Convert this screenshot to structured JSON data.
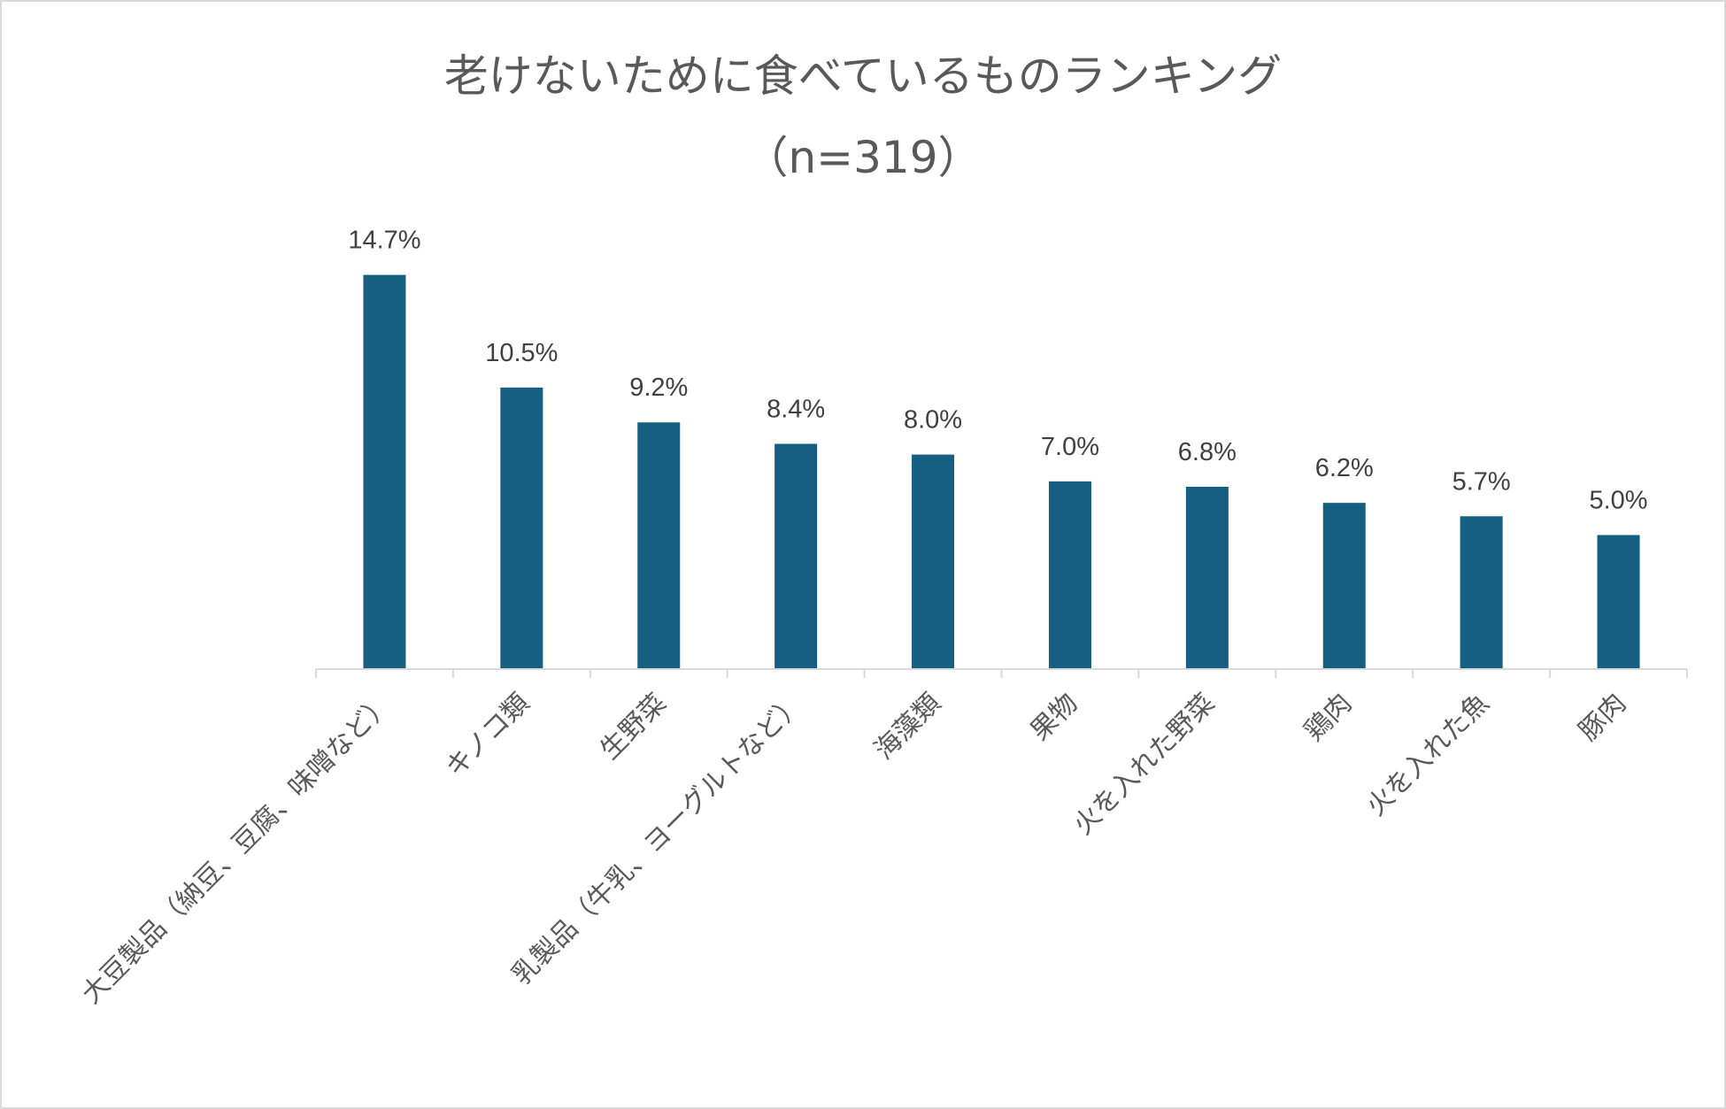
{
  "chart_data": {
    "type": "bar",
    "title": "老けないために食べているものランキング",
    "subtitle": "（n=319）",
    "categories": [
      "大豆製品（納豆、豆腐、味噌など）",
      "キノコ類",
      "生野菜",
      "乳製品（牛乳、ヨーグルトなど）",
      "海藻類",
      "果物",
      "火を入れた野菜",
      "鶏肉",
      "火を入れた魚",
      "豚肉"
    ],
    "values": [
      14.7,
      10.5,
      9.2,
      8.4,
      8.0,
      7.0,
      6.8,
      6.2,
      5.7,
      5.0
    ],
    "value_labels": [
      "14.7%",
      "10.5%",
      "9.2%",
      "8.4%",
      "8.0%",
      "7.0%",
      "6.8%",
      "6.2%",
      "5.7%",
      "5.0%"
    ],
    "unit": "%",
    "ylim": [
      0,
      16
    ],
    "grid": false,
    "legend": "none",
    "bar_color": "#155f83"
  }
}
